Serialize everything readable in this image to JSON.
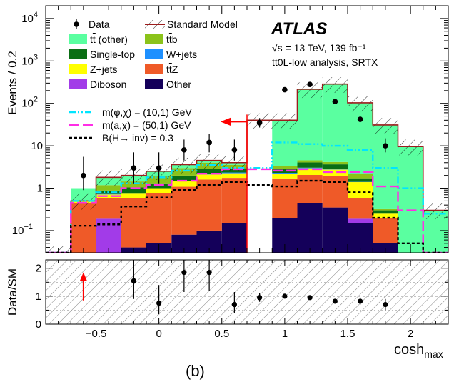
{
  "chart_data": {
    "type": "bar",
    "panel_label": "(b)",
    "experiment": "ATLAS",
    "energy_label": "√s = 13 TeV, 139 fb⁻¹",
    "analysis_label": "tt0L-low analysis, SRTX",
    "xlabel": "cosh",
    "xlabel_sub": "max",
    "ylabel": "Events / 0.2",
    "ratio_ylabel": "Data/SM",
    "xlim": [
      -0.9,
      2.3
    ],
    "ylim": [
      0.03,
      20000
    ],
    "yscale": "log",
    "ratio_ylim": [
      0,
      2.3
    ],
    "x_ticks": [
      -0.5,
      0,
      0.5,
      1,
      1.5,
      2
    ],
    "x_tick_labels": [
      "−0.5",
      "0",
      "0.5",
      "1",
      "1.5",
      "2"
    ],
    "y_ticks": [
      {
        "v": 10000,
        "base": "10",
        "exp": "4"
      },
      {
        "v": 1000,
        "base": "10",
        "exp": "3"
      },
      {
        "v": 100,
        "base": "10",
        "exp": "2"
      },
      {
        "v": 10,
        "base": "10",
        "exp": ""
      },
      {
        "v": 1,
        "base": "1",
        "exp": ""
      },
      {
        "v": 0.1,
        "base": "10",
        "exp": "−1"
      }
    ],
    "ratio_ticks": [
      "0",
      "1",
      "2"
    ],
    "bin_edges": [
      -0.9,
      -0.7,
      -0.5,
      -0.3,
      -0.1,
      0.1,
      0.3,
      0.5,
      0.7,
      0.9,
      1.1,
      1.3,
      1.5,
      1.7,
      1.9,
      2.1,
      2.3
    ],
    "stack": [
      {
        "name": "Other",
        "color": "#14005a",
        "values": [
          0.0,
          0.0,
          0.03,
          0.04,
          0.05,
          0.08,
          0.1,
          0.15,
          0.0,
          0.2,
          0.45,
          0.35,
          0.15,
          0.05,
          0.03,
          0.0
        ]
      },
      {
        "name": "Diboson",
        "color": "#a23be8",
        "values": [
          0.0,
          0.0,
          0.16,
          0.0,
          0.0,
          0.0,
          0.0,
          0.0,
          0.0,
          0.0,
          0.0,
          0.0,
          0.04,
          0.0,
          0.0,
          0.0
        ]
      },
      {
        "name": "ttZ",
        "color": "#ef5a28",
        "values": [
          0.0,
          0.45,
          0.4,
          0.55,
          0.7,
          1.0,
          1.5,
          1.6,
          0.0,
          1.5,
          1.6,
          1.6,
          0.4,
          0.15,
          0.0,
          0.0
        ]
      },
      {
        "name": "Z+jets",
        "color": "#ffff00",
        "values": [
          0.0,
          0.05,
          0.12,
          0.15,
          0.25,
          0.4,
          0.5,
          0.5,
          0.0,
          0.5,
          0.9,
          0.8,
          0.8,
          0.05,
          0.0,
          0.0
        ]
      },
      {
        "name": "W+jets",
        "color": "#1e90ff",
        "values": [
          0.0,
          0.0,
          0.02,
          0.0,
          0.0,
          0.0,
          0.1,
          0.1,
          0.0,
          0.1,
          0.1,
          0.1,
          0.02,
          0.0,
          0.0,
          0.0
        ]
      },
      {
        "name": "Single-top",
        "color": "#0a6e14",
        "values": [
          0.0,
          0.0,
          0.15,
          0.3,
          0.3,
          0.5,
          0.6,
          0.6,
          0.0,
          0.6,
          1.0,
          0.8,
          0.3,
          0.05,
          0.0,
          0.0
        ]
      },
      {
        "name": "ttb",
        "color": "#8bc31a",
        "values": [
          0.0,
          0.0,
          0.3,
          0.4,
          0.6,
          1.0,
          1.2,
          0.6,
          0.0,
          0.4,
          0.5,
          0.5,
          0.5,
          0.02,
          0.0,
          0.0
        ]
      },
      {
        "name": "tt (other)",
        "color": "#5affa0",
        "values": [
          0.0,
          0.5,
          0.6,
          0.6,
          0.6,
          0.6,
          0.5,
          0.4,
          0.0,
          35,
          210,
          280,
          100,
          30,
          9.5,
          0.3
        ]
      }
    ],
    "sm_total": [
      0.03,
      0.5,
      1.8,
      2.0,
      2.5,
      3.6,
      4.5,
      4.0,
      40,
      40,
      215,
      285,
      103,
      31,
      9.6,
      0.3
    ],
    "signals": [
      {
        "name": "m(φ,χ) = (10,1) GeV",
        "color": "#00e5ff",
        "dash": "9 3 2 3 2 3",
        "values": [
          0.03,
          0.5,
          0.8,
          1.3,
          1.8,
          2.6,
          3.5,
          3.0,
          3.0,
          12,
          11,
          10,
          8,
          3.0,
          1.0,
          0.25
        ]
      },
      {
        "name": "m(a,χ) = (50,1) GeV",
        "color": "#ff2ee6",
        "dash": "14 5",
        "values": [
          0.03,
          0.45,
          0.65,
          1.0,
          1.2,
          1.5,
          2.2,
          2.8,
          2.8,
          2.6,
          2.8,
          2.4,
          2.4,
          1.1,
          0.3,
          0.03
        ]
      },
      {
        "name": "B(H→ inv) = 0.3",
        "color": "#000000",
        "dash": "4 3",
        "values": [
          0.03,
          0.13,
          0.14,
          0.37,
          0.6,
          0.9,
          1.2,
          1.4,
          1.2,
          1.1,
          1.5,
          1.4,
          0.8,
          0.2,
          0.05,
          0.03
        ]
      }
    ],
    "data": [
      {
        "x": -0.6,
        "y": 2,
        "lo": 0.9,
        "hi": 5.5
      },
      {
        "x": -0.2,
        "y": 3,
        "lo": 1.3,
        "hi": 7
      },
      {
        "x": 0.0,
        "y": 3,
        "lo": 1.3,
        "hi": 7
      },
      {
        "x": 0.2,
        "y": 8,
        "lo": 4.5,
        "hi": 14
      },
      {
        "x": 0.4,
        "y": 12,
        "lo": 7,
        "hi": 19
      },
      {
        "x": 0.6,
        "y": 8,
        "lo": 4.5,
        "hi": 14
      },
      {
        "x": 0.8,
        "y": 35,
        "lo": 27,
        "hi": 45
      },
      {
        "x": 1.0,
        "y": 210,
        "lo": 195,
        "hi": 225
      },
      {
        "x": 1.2,
        "y": 280,
        "lo": 262,
        "hi": 298
      },
      {
        "x": 1.4,
        "y": 110,
        "lo": 100,
        "hi": 121
      },
      {
        "x": 1.6,
        "y": 42,
        "lo": 36,
        "hi": 49
      },
      {
        "x": 1.8,
        "y": 10,
        "lo": 7,
        "hi": 15
      }
    ],
    "ratio": [
      {
        "x": -0.6,
        "y": 2.5,
        "offscale": true
      },
      {
        "x": -0.2,
        "y": 1.55,
        "lo": 0.9,
        "hi": 2.4
      },
      {
        "x": 0.0,
        "y": 0.75,
        "lo": 0.35,
        "hi": 1.4
      },
      {
        "x": 0.2,
        "y": 1.85,
        "lo": 1.15,
        "hi": 2.6
      },
      {
        "x": 0.4,
        "y": 1.85,
        "lo": 1.2,
        "hi": 2.6
      },
      {
        "x": 0.6,
        "y": 0.7,
        "lo": 0.4,
        "hi": 1.15
      },
      {
        "x": 0.8,
        "y": 0.95,
        "lo": 0.8,
        "hi": 1.12
      },
      {
        "x": 1.0,
        "y": 1.0,
        "lo": 0.93,
        "hi": 1.07
      },
      {
        "x": 1.2,
        "y": 0.95,
        "lo": 0.89,
        "hi": 1.01
      },
      {
        "x": 1.4,
        "y": 0.82,
        "lo": 0.74,
        "hi": 0.9
      },
      {
        "x": 1.6,
        "y": 0.82,
        "lo": 0.7,
        "hi": 0.95
      },
      {
        "x": 1.8,
        "y": 0.7,
        "lo": 0.5,
        "hi": 0.9
      }
    ],
    "cut_x": 0.7,
    "cut_arrow_y": 40,
    "legend": {
      "data": "Data",
      "sm": "Standard Model",
      "items": [
        {
          "label": "tt (other)",
          "color": "#5affa0"
        },
        {
          "label": "ttb",
          "color": "#8bc31a"
        },
        {
          "label": "Single-top",
          "color": "#0a6e14"
        },
        {
          "label": "W+jets",
          "color": "#1e90ff"
        },
        {
          "label": "Z+jets",
          "color": "#ffff00"
        },
        {
          "label": "ttZ",
          "color": "#ef5a28"
        },
        {
          "label": "Diboson",
          "color": "#a23be8"
        },
        {
          "label": "Other",
          "color": "#14005a"
        }
      ]
    },
    "sm_color": "#9b1c1c",
    "arrow_color": "#ff0000"
  }
}
